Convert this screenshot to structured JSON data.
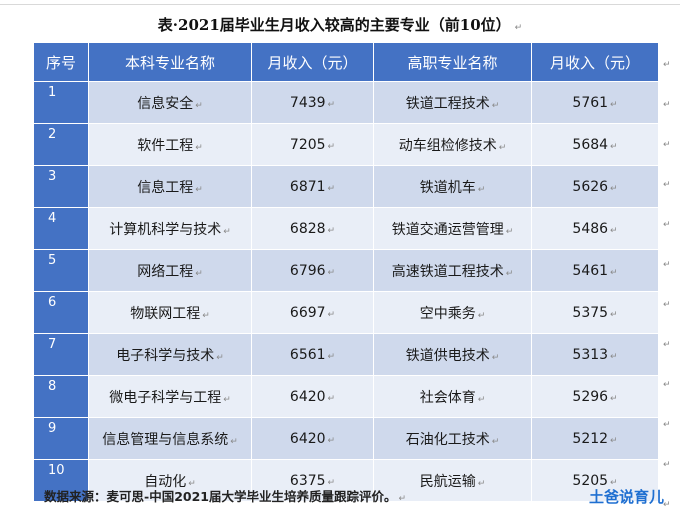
{
  "title": "表·2021届毕业生月收入较高的主要专业（前10位）",
  "headers": [
    "序号",
    "本科专业名称",
    "月收入（元）",
    "高职专业名称",
    "月收入（元）"
  ],
  "rows": [
    {
      "idx": "1",
      "ug_major": "信息安全",
      "ug_income": "7439",
      "voc_major": "铁道工程技术",
      "voc_income": "5761"
    },
    {
      "idx": "2",
      "ug_major": "软件工程",
      "ug_income": "7205",
      "voc_major": "动车组检修技术",
      "voc_income": "5684"
    },
    {
      "idx": "3",
      "ug_major": "信息工程",
      "ug_income": "6871",
      "voc_major": "铁道机车",
      "voc_income": "5626"
    },
    {
      "idx": "4",
      "ug_major": "计算机科学与技术",
      "ug_income": "6828",
      "voc_major": "铁道交通运营管理",
      "voc_income": "5486"
    },
    {
      "idx": "5",
      "ug_major": "网络工程",
      "ug_income": "6796",
      "voc_major": "高速铁道工程技术",
      "voc_income": "5461"
    },
    {
      "idx": "6",
      "ug_major": "物联网工程",
      "ug_income": "6697",
      "voc_major": "空中乘务",
      "voc_income": "5375"
    },
    {
      "idx": "7",
      "ug_major": "电子科学与技术",
      "ug_income": "6561",
      "voc_major": "铁道供电技术",
      "voc_income": "5313"
    },
    {
      "idx": "8",
      "ug_major": "微电子科学与工程",
      "ug_income": "6420",
      "voc_major": "社会体育",
      "voc_income": "5296"
    },
    {
      "idx": "9",
      "ug_major": "信息管理与信息系统",
      "ug_income": "6420",
      "voc_major": "石油化工技术",
      "voc_income": "5212"
    },
    {
      "idx": "10",
      "ug_major": "自动化",
      "ug_income": "6375",
      "voc_major": "民航运输",
      "voc_income": "5205"
    }
  ],
  "source": "数据来源：麦可思-中国2021届大学毕业生培养质量跟踪评价。",
  "watermark": "土爸说育儿",
  "paragraph_mark": "↵",
  "colors": {
    "header": "#4472c4",
    "row_odd": "#cfd9ec",
    "row_even": "#e9eef7",
    "watermark": "#1f6fd1"
  }
}
